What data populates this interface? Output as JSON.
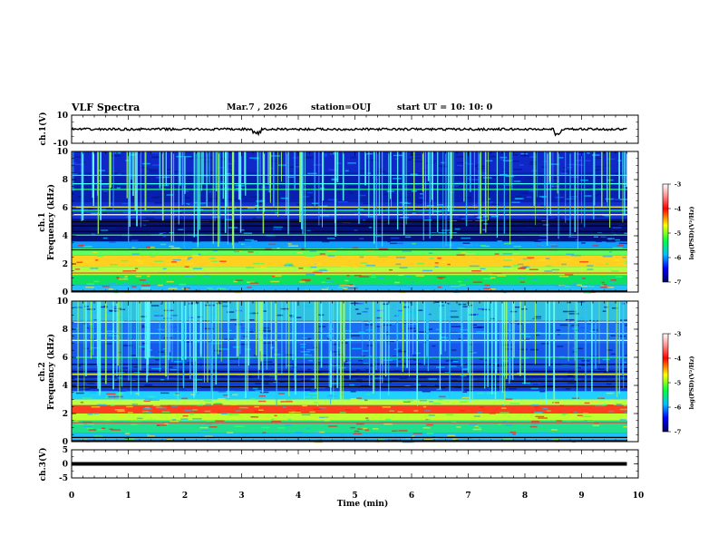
{
  "header": {
    "title": "VLF Spectra",
    "date": "Mar.7 , 2026",
    "station": "station=OUJ",
    "start": "start UT =  10: 10: 0"
  },
  "chart_data": [
    {
      "type": "line",
      "title": "ch.1(V)",
      "ylabel": "ch.1(V)",
      "ylim": [
        -10,
        10
      ],
      "yticks": [
        "10",
        "-10"
      ],
      "description_level_V": 0,
      "x": [
        0,
        3.2,
        3.25,
        3.35,
        8.5,
        8.55,
        8.65,
        9.8
      ],
      "values": [
        0,
        0,
        -2,
        0,
        0,
        -2,
        0,
        0
      ]
    },
    {
      "type": "heatmap",
      "ylabel": "ch.1\nFrequency (kHz)",
      "ylabel_line1": "ch.1",
      "ylabel_line2": "Frequency (kHz)",
      "ylim": [
        0,
        10
      ],
      "yticks": [
        "0",
        "2",
        "4",
        "6",
        "8",
        "10"
      ],
      "colorbar": {
        "label": "log(PSD)(V²/Hz)",
        "range": [
          -7,
          -3
        ],
        "ticks": [
          "-3",
          "-4",
          "-5",
          "-6",
          "-7"
        ]
      }
    },
    {
      "type": "heatmap",
      "ylabel_line1": "ch.2",
      "ylabel_line2": "Frequency (kHz)",
      "ylim": [
        0,
        10
      ],
      "yticks": [
        "0",
        "2",
        "4",
        "6",
        "8",
        "10"
      ],
      "colorbar": {
        "label": "log(PSD)(V²/Hz)",
        "range": [
          -7,
          -3
        ],
        "ticks": [
          "-3",
          "-4",
          "-5",
          "-6",
          "-7"
        ]
      }
    },
    {
      "type": "line",
      "ylabel": "ch.3(V)",
      "ylim": [
        -5,
        5
      ],
      "yticks": [
        "5",
        "0",
        "-5"
      ],
      "x": [
        0,
        9.8
      ],
      "values": [
        0,
        0
      ]
    }
  ],
  "xaxis": {
    "label": "Time (min)",
    "range": [
      0,
      10
    ],
    "ticks": [
      "0",
      "1",
      "2",
      "3",
      "4",
      "5",
      "6",
      "7",
      "8",
      "9",
      "10"
    ]
  }
}
